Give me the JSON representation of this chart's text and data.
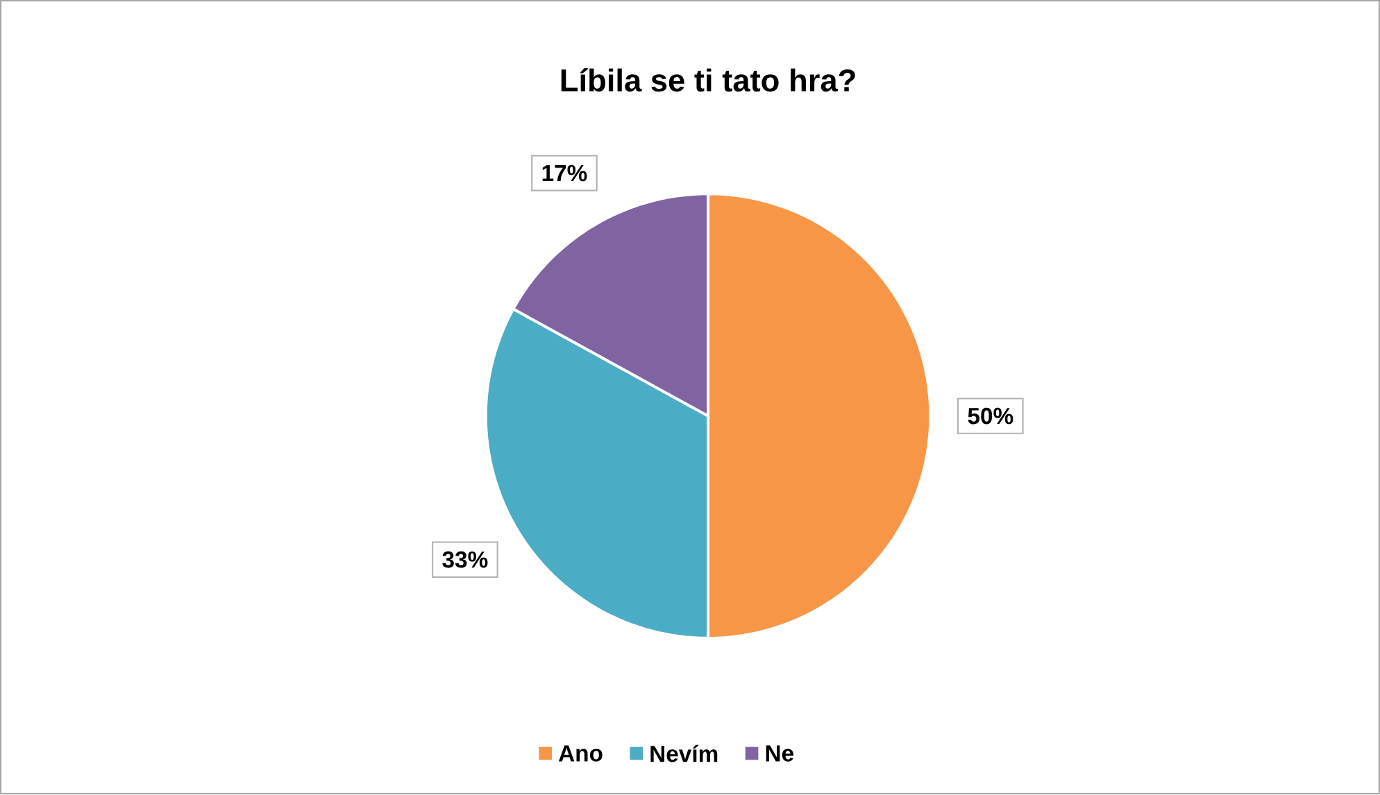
{
  "chart_data": {
    "type": "pie",
    "title": "Líbila se ti tato hra?",
    "categories": [
      "Ano",
      "Nevím",
      "Ne"
    ],
    "values": [
      50,
      33,
      17
    ],
    "value_labels": [
      "50%",
      "33%",
      "17%"
    ],
    "colors": [
      "#f79646",
      "#4bacc6",
      "#8064a2"
    ],
    "legend": "bottom"
  }
}
